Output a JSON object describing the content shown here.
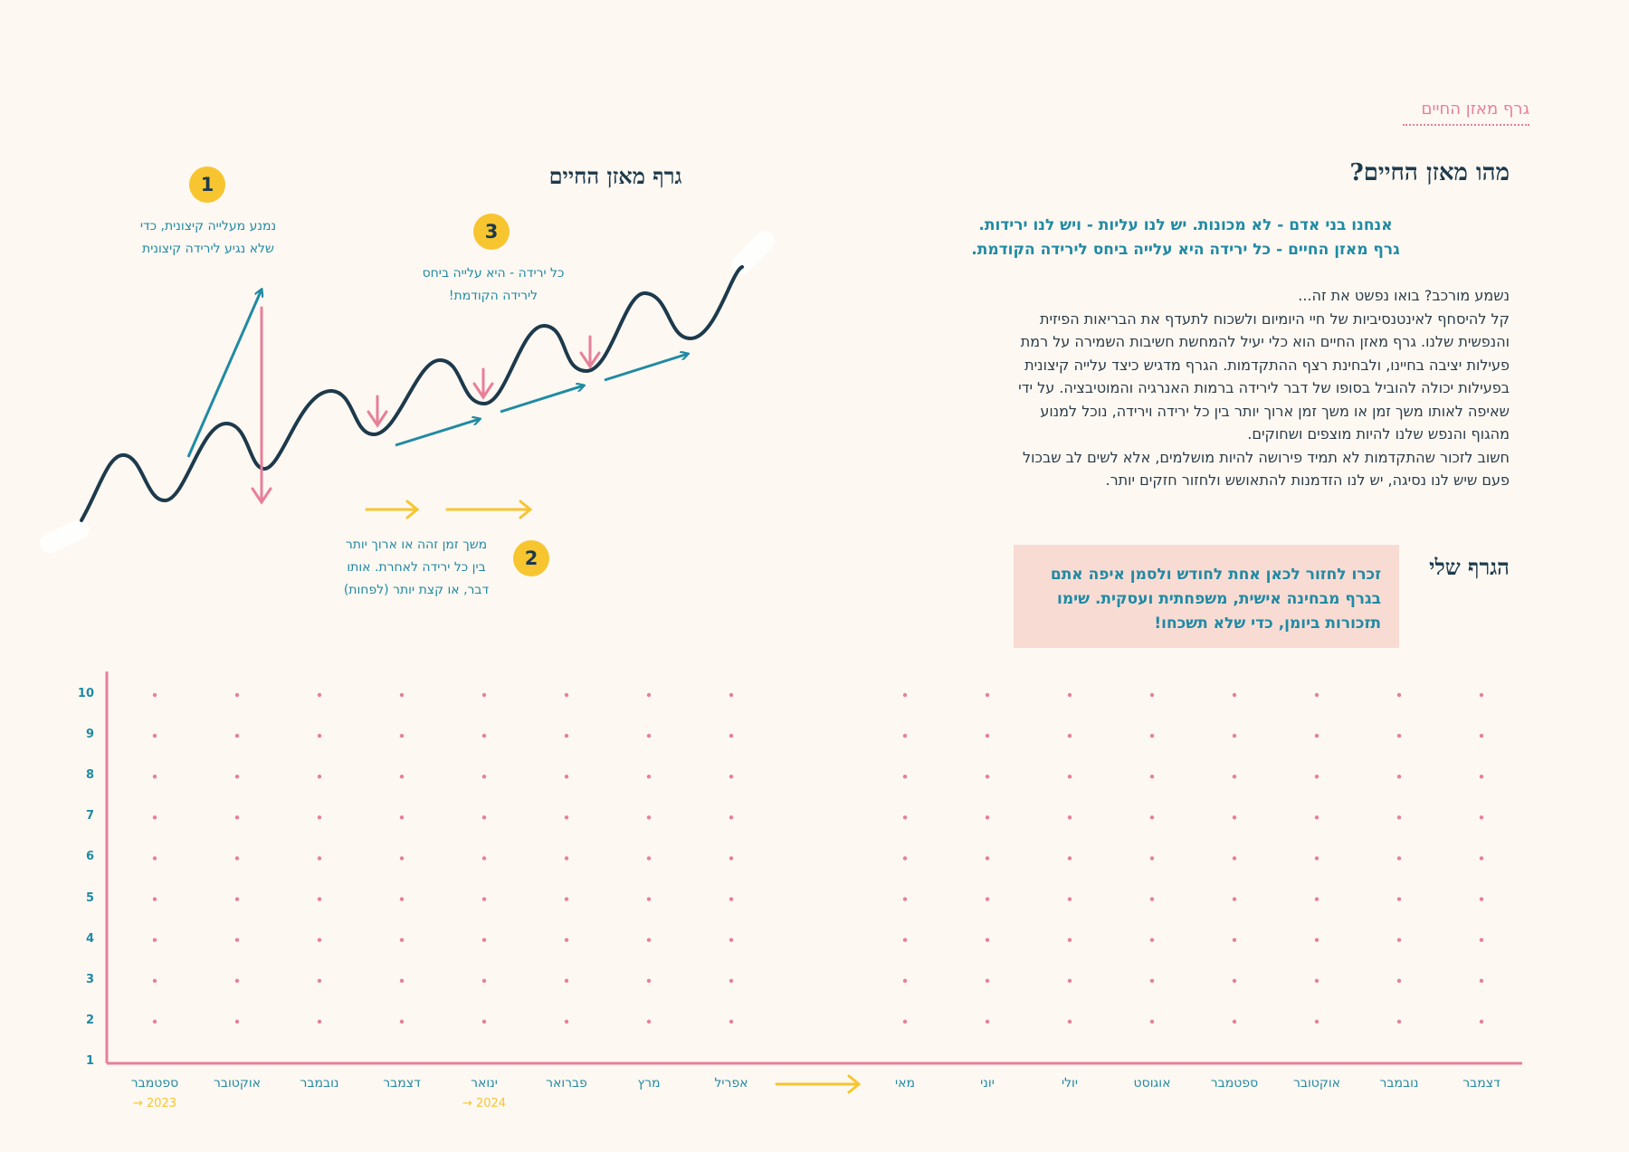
{
  "header": {
    "label": "גרף מאזן החיים"
  },
  "intro": {
    "heading": "מהו מאזן החיים?",
    "bold_lines": [
      "אנחנו בני אדם - לא מכונות. יש לנו עליות - ויש לנו ירידות.",
      "גרף מאזן החיים - כל ירידה היא עלייה ביחס לירידה הקודמת."
    ],
    "paragraph_lines": [
      "נשמע מורכב? בואו נפשט את זה...",
      "קל להיסחף לאינטנסיביות של חיי היומיום ולשכוח לתעדף את הבריאות הפיזית",
      "והנפשית שלנו. גרף מאזן החיים הוא כלי יעיל להמחשת חשיבות השמירה על רמת",
      "פעילות יציבה בחיינו, ולבחינת רצף ההתקדמות. הגרף מדגיש כיצד עלייה קיצונית",
      "בפעילות יכולה להוביל בסופו של דבר לירידה ברמות האנרגיה והמוטיבציה. על ידי",
      "שאיפה לאותו משך זמן או משך זמן ארוך יותר בין כל ירידה וירידה, נוכל למנוע",
      "מהגוף והנפש שלנו להיות מוצפים ושחוקים.",
      "חשוב לזכור שהתקדמות לא תמיד פירושה להיות מושלמים, אלא לשים לב שבכול",
      "פעם שיש לנו נסיגה, יש לנו הזדמנות להתאושש ולחזור חזקים יותר."
    ]
  },
  "example_graph": {
    "title": "גרף מאזן החיים",
    "annotations": [
      {
        "number": "1",
        "lines": [
          "נמנע מעלייה קיצונית, כדי",
          "שלא נגיע לירידה קיצונית"
        ]
      },
      {
        "number": "3",
        "lines": [
          "כל ירידה - היא עלייה ביחס",
          "לירידה הקודמת!"
        ]
      },
      {
        "number": "2",
        "lines": [
          "משך זמן זהה או ארוך יותר",
          "בין כל ירידה לאחרת. אותו",
          "דבר, או קצת יותר (לפחות)"
        ]
      }
    ]
  },
  "my_graph": {
    "heading": "הגרף שלי",
    "reminder_lines": [
      "זכרו לחזור לכאן אחת לחודש ולסמן איפה אתם",
      "בגרף מבחינה אישית, משפחתית ועסקית. שימו",
      "תזכורות ביומן, כדי שלא תשכחו!"
    ]
  },
  "chart_data": {
    "type": "scatter",
    "y_ticks": [
      "10",
      "9",
      "8",
      "7",
      "6",
      "5",
      "4",
      "3",
      "2",
      "1"
    ],
    "ylim": [
      1,
      10
    ],
    "months_first_row": [
      "ספטמבר",
      "אוקטובר",
      "נובמבר",
      "דצמבר",
      "ינואר",
      "פברואר",
      "מרץ",
      "אפריל"
    ],
    "months_second_row": [
      "מאי",
      "יוני",
      "יולי",
      "אוגוסט",
      "ספטמבר",
      "אוקטובר",
      "נובמבר",
      "דצמבר"
    ],
    "year_labels": [
      "2023",
      "2024"
    ],
    "year_arrow": "→",
    "grid": "dotted",
    "colors": {
      "axis": "#e87f99",
      "dots": "#e87f99",
      "labels": "#208aa3",
      "accent": "#f7c530"
    }
  }
}
